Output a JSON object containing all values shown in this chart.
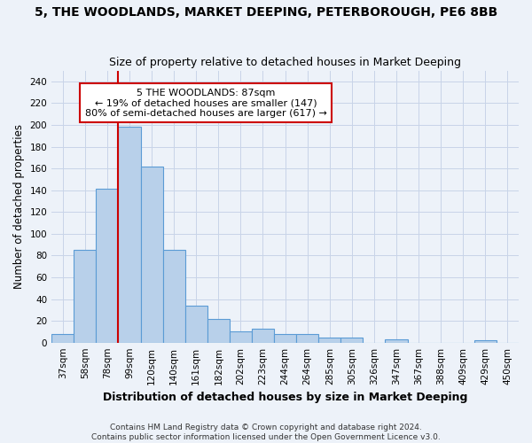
{
  "title": "5, THE WOODLANDS, MARKET DEEPING, PETERBOROUGH, PE6 8BB",
  "subtitle": "Size of property relative to detached houses in Market Deeping",
  "xlabel": "Distribution of detached houses by size in Market Deeping",
  "ylabel": "Number of detached properties",
  "categories": [
    "37sqm",
    "58sqm",
    "78sqm",
    "99sqm",
    "120sqm",
    "140sqm",
    "161sqm",
    "182sqm",
    "202sqm",
    "223sqm",
    "244sqm",
    "264sqm",
    "285sqm",
    "305sqm",
    "326sqm",
    "347sqm",
    "367sqm",
    "388sqm",
    "409sqm",
    "429sqm",
    "450sqm"
  ],
  "values": [
    8,
    85,
    141,
    198,
    162,
    85,
    34,
    22,
    10,
    13,
    8,
    8,
    5,
    5,
    0,
    3,
    0,
    0,
    0,
    2,
    0
  ],
  "bar_color": "#b8d0ea",
  "bar_edge_color": "#5b9bd5",
  "grid_color": "#c8d4e8",
  "vline_color": "#cc0000",
  "annotation_text": "5 THE WOODLANDS: 87sqm\n← 19% of detached houses are smaller (147)\n80% of semi-detached houses are larger (617) →",
  "annotation_box_color": "white",
  "annotation_box_edge_color": "#cc0000",
  "ylim": [
    0,
    250
  ],
  "yticks": [
    0,
    20,
    40,
    60,
    80,
    100,
    120,
    140,
    160,
    180,
    200,
    220,
    240
  ],
  "footer1": "Contains HM Land Registry data © Crown copyright and database right 2024.",
  "footer2": "Contains public sector information licensed under the Open Government Licence v3.0.",
  "bg_color": "#edf2f9",
  "title_fontsize": 10,
  "subtitle_fontsize": 9,
  "xlabel_fontsize": 9,
  "ylabel_fontsize": 8.5,
  "tick_fontsize": 7.5,
  "footer_fontsize": 6.5
}
